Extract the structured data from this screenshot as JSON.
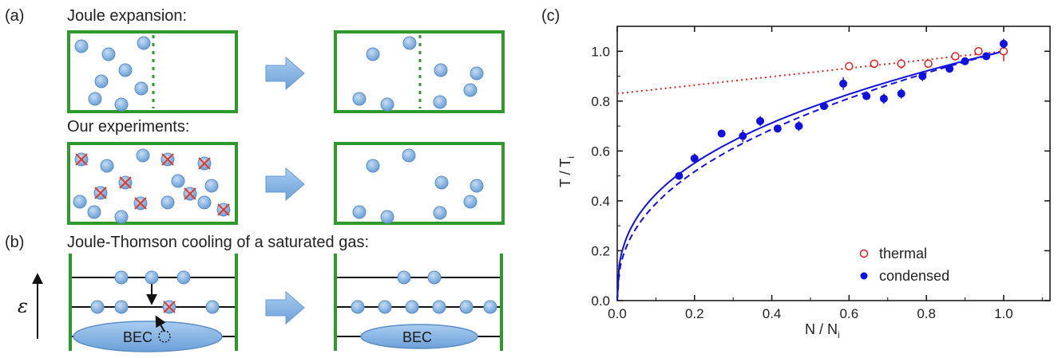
{
  "panel_labels": {
    "a": "(a)",
    "b": "(b)",
    "c": "(c)"
  },
  "panel_a": {
    "title1": "Joule expansion:",
    "title2": "Our experiments:"
  },
  "panel_b": {
    "title": "Joule-Thomson cooling of a saturated gas:",
    "energy_symbol": "ε",
    "bec_label": "BEC"
  },
  "colors": {
    "box_green": "#2e9a2e",
    "particle_blue": "#7fb0e0",
    "arrow_blue": "#7aaee0",
    "cross_red": "#e03a2a",
    "thermal_red": "#e02020",
    "condensed_blue": "#1010e0"
  },
  "chart_data": {
    "type": "scatter",
    "xlabel": "N / N",
    "xlabel_sub": "i",
    "ylabel": "T / T",
    "ylabel_sub": "i",
    "xlim": [
      0.0,
      1.12
    ],
    "ylim": [
      0.0,
      1.1
    ],
    "xticks": [
      "0.0",
      "0.2",
      "0.4",
      "0.6",
      "0.8",
      "1.0"
    ],
    "yticks": [
      "0.0",
      "0.2",
      "0.4",
      "0.6",
      "0.8",
      "1.0"
    ],
    "legend_position": "bottom-right",
    "series": [
      {
        "name": "thermal",
        "marker": "open-circle",
        "color": "#e02020",
        "x": [
          0.6,
          0.665,
          0.735,
          0.805,
          0.875,
          0.935,
          1.0
        ],
        "y": [
          0.94,
          0.95,
          0.95,
          0.95,
          0.98,
          1.0,
          1.0
        ],
        "yerr": [
          0.015,
          0.015,
          0.02,
          0.015,
          0.01,
          0.01,
          0.04
        ]
      },
      {
        "name": "condensed",
        "marker": "filled-circle",
        "color": "#1010e0",
        "x": [
          0.16,
          0.2,
          0.27,
          0.325,
          0.37,
          0.415,
          0.47,
          0.535,
          0.585,
          0.645,
          0.69,
          0.735,
          0.79,
          0.86,
          0.9,
          0.955,
          1.0
        ],
        "y": [
          0.5,
          0.57,
          0.67,
          0.66,
          0.72,
          0.69,
          0.7,
          0.78,
          0.87,
          0.82,
          0.81,
          0.83,
          0.9,
          0.93,
          0.96,
          0.98,
          1.03
        ],
        "yerr": [
          0.01,
          0.02,
          0.015,
          0.025,
          0.02,
          0.015,
          0.02,
          0.015,
          0.025,
          0.015,
          0.02,
          0.02,
          0.02,
          0.015,
          0.015,
          0.015,
          0.02
        ]
      }
    ],
    "lines": [
      {
        "style": "dotted",
        "color": "#e02020",
        "x": [
          0.0,
          1.0
        ],
        "y": [
          0.83,
          1.0
        ]
      },
      {
        "style": "solid",
        "color": "#1010e0",
        "exponent": 0.37
      },
      {
        "style": "dashed",
        "color": "#1010e0",
        "exponent": 0.41
      }
    ]
  }
}
